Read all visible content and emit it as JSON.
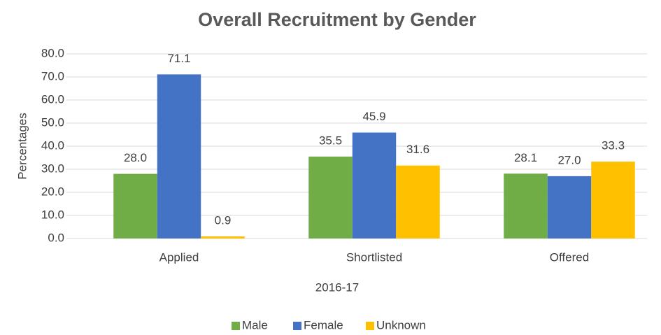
{
  "chart_data": {
    "type": "bar",
    "title": "Overall Recruitment by Gender",
    "x_label": "2016-17",
    "y_label": "Percentages",
    "categories": [
      "Applied",
      "Shortlisted",
      "Offered"
    ],
    "series": [
      {
        "name": "Male",
        "color": "#70ad47",
        "values": [
          28.0,
          35.5,
          28.1
        ],
        "value_labels": [
          "28.0",
          "35.5",
          "28.1"
        ]
      },
      {
        "name": "Female",
        "color": "#4472c4",
        "values": [
          71.1,
          45.9,
          27.0
        ],
        "value_labels": [
          "71.1",
          "45.9",
          "27.0"
        ]
      },
      {
        "name": "Unknown",
        "color": "#ffc000",
        "values": [
          0.9,
          31.6,
          33.3
        ],
        "value_labels": [
          "0.9",
          "31.6",
          "33.3"
        ]
      }
    ],
    "ylim": [
      0,
      80
    ],
    "yticks": [
      {
        "value": 0,
        "label": "0.0"
      },
      {
        "value": 10,
        "label": "10.0"
      },
      {
        "value": 20,
        "label": "20.0"
      },
      {
        "value": 30,
        "label": "30.0"
      },
      {
        "value": 40,
        "label": "40.0"
      },
      {
        "value": 50,
        "label": "50.0"
      },
      {
        "value": 60,
        "label": "60.0"
      },
      {
        "value": 70,
        "label": "70.0"
      },
      {
        "value": 80,
        "label": "80.0"
      }
    ],
    "grid": true,
    "legend": "bottom"
  }
}
